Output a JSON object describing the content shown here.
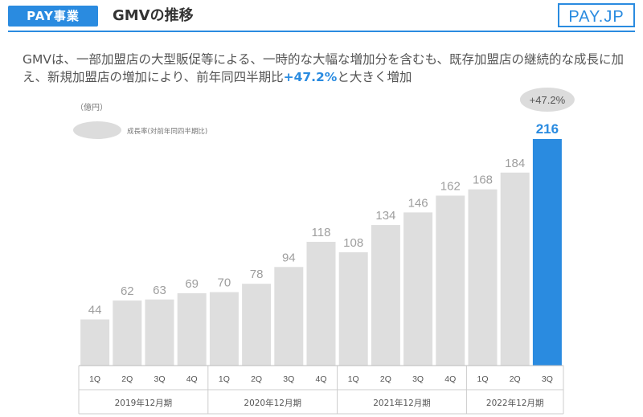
{
  "header": {
    "badge": "PAY事業",
    "title": "GMVの推移",
    "logo": "PAY.JP"
  },
  "description": {
    "part1": "GMVは、一部加盟店の大型販促等による、一時的な大幅な増加分を含むも、既存加盟店の継続的な成長に加え、新規加盟店の増加により、前年同四半期比",
    "highlight": "+47.2%",
    "part2": "と大きく増加"
  },
  "colors": {
    "accent": "#2a8be0",
    "bar": "#dedede",
    "label": "#9e9e9e"
  },
  "chart_data": {
    "type": "bar",
    "unit_label": "（億円）",
    "legend_label": "成長率(対前年同四半期比)",
    "categories": [
      "1Q",
      "2Q",
      "3Q",
      "4Q",
      "1Q",
      "2Q",
      "3Q",
      "4Q",
      "1Q",
      "2Q",
      "3Q",
      "4Q",
      "1Q",
      "2Q",
      "3Q"
    ],
    "values": [
      44,
      62,
      63,
      69,
      70,
      78,
      94,
      118,
      108,
      134,
      146,
      162,
      168,
      184,
      216
    ],
    "highlight_index": 14,
    "groups": [
      {
        "label": "2019年12月期",
        "count": 4
      },
      {
        "label": "2020年12月期",
        "count": 4
      },
      {
        "label": "2021年12月期",
        "count": 4
      },
      {
        "label": "2022年12月期",
        "count": 3
      }
    ],
    "growth_callout": "+47.2%",
    "ylim": [
      0,
      216
    ]
  }
}
